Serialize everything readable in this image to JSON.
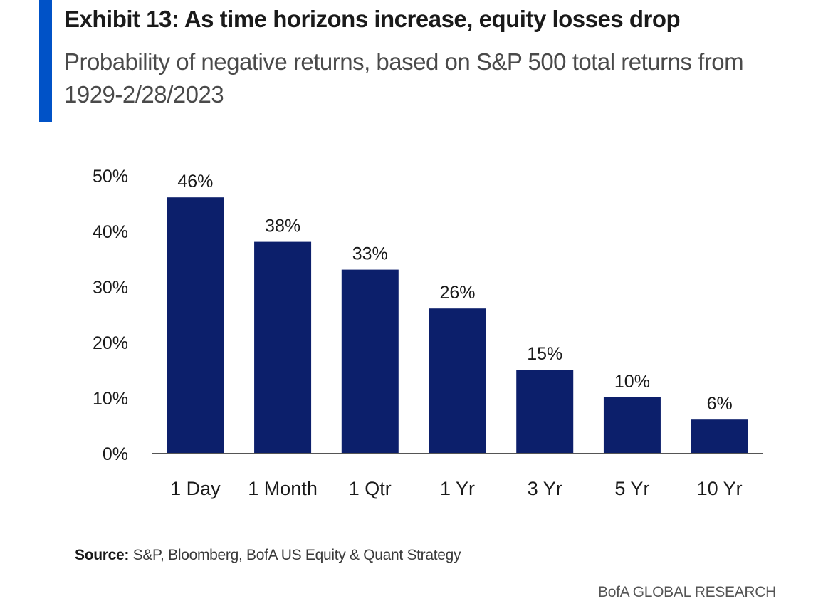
{
  "header": {
    "title": "Exhibit 13: As time horizons increase, equity losses drop",
    "subtitle": "Probability of negative returns, based on S&P 500 total returns from 1929-2/28/2023"
  },
  "footer": {
    "source_label": "Source:",
    "source_text": "S&P, Bloomberg, BofA US Equity & Quant Strategy",
    "brand": "BofA GLOBAL RESEARCH"
  },
  "colors": {
    "accent": "#0052c7",
    "bar": "#0c1f6b",
    "axis": "#555555",
    "text": "#1a1a1a"
  },
  "chart_data": {
    "type": "bar",
    "title": "Exhibit 13: As time horizons increase, equity losses drop",
    "subtitle": "Probability of negative returns, based on S&P 500 total returns from 1929-2/28/2023",
    "categories": [
      "1 Day",
      "1 Month",
      "1 Qtr",
      "1 Yr",
      "3 Yr",
      "5 Yr",
      "10 Yr"
    ],
    "values": [
      46,
      38,
      33,
      26,
      15,
      10,
      6
    ],
    "data_labels": [
      "46%",
      "38%",
      "33%",
      "26%",
      "15%",
      "10%",
      "6%"
    ],
    "y_ticks": [
      0,
      10,
      20,
      30,
      40,
      50
    ],
    "y_tick_labels": [
      "0%",
      "10%",
      "20%",
      "30%",
      "40%",
      "50%"
    ],
    "ylim": [
      0,
      50
    ],
    "xlabel": "",
    "ylabel": "",
    "grid": false,
    "legend": "none"
  }
}
